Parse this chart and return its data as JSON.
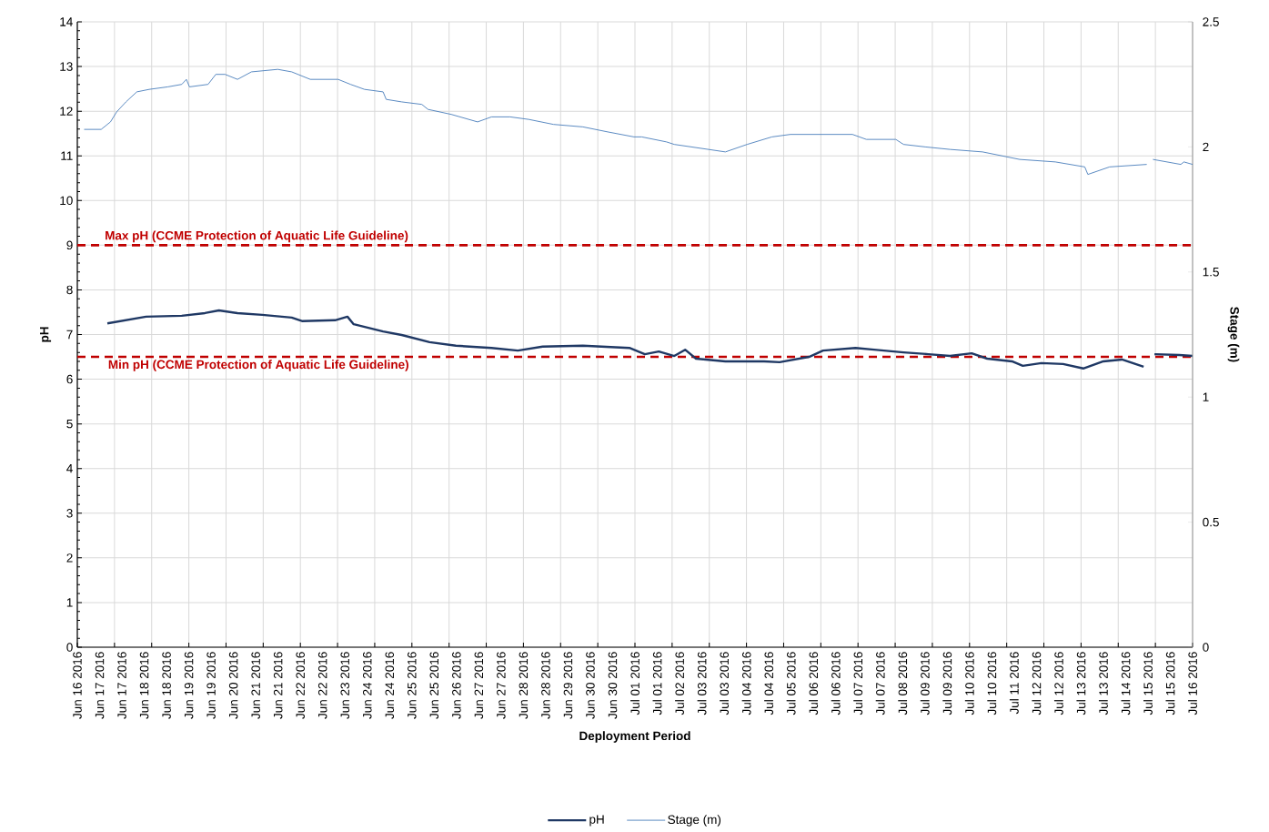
{
  "chart_data": {
    "type": "line",
    "xlabel": "Deployment Period",
    "ylabel": "pH",
    "y2label": "Stage (m)",
    "xlim": [
      "2016-06-16T09:36",
      "2016-07-16T09:36"
    ],
    "xticks": [
      {
        "value": "2016-06-16T09:36",
        "label": null
      },
      {
        "value": "2016-06-17T09:36",
        "label": null
      },
      {
        "value": "2016-06-18T09:36",
        "label": null
      },
      {
        "value": "2016-06-19T09:36",
        "label": null
      },
      {
        "value": "2016-06-20T09:36",
        "label": null
      },
      {
        "value": "2016-06-21T09:36",
        "label": null
      },
      {
        "value": "2016-06-22T09:36",
        "label": null
      },
      {
        "value": "2016-06-23T09:36",
        "label": null
      },
      {
        "value": "2016-06-24T09:36",
        "label": null
      },
      {
        "value": "2016-06-25T09:36",
        "label": null
      },
      {
        "value": "2016-06-26T09:36",
        "label": null
      },
      {
        "value": "2016-06-27T09:36",
        "label": null
      },
      {
        "value": "2016-06-28T09:36",
        "label": null
      },
      {
        "value": "2016-06-29T09:36",
        "label": null
      },
      {
        "value": "2016-06-30T09:36",
        "label": null
      },
      {
        "value": "2016-07-01T09:36",
        "label": null
      },
      {
        "value": "2016-07-02T09:36",
        "label": null
      },
      {
        "value": "2016-07-03T09:36",
        "label": null
      },
      {
        "value": "2016-07-04T09:36",
        "label": null
      },
      {
        "value": "2016-07-05T09:36",
        "label": null
      },
      {
        "value": "2016-07-06T09:36",
        "label": null
      },
      {
        "value": "2016-07-07T09:36",
        "label": null
      },
      {
        "value": "2016-07-08T09:36",
        "label": null
      },
      {
        "value": "2016-07-09T09:36",
        "label": null
      },
      {
        "value": "2016-07-10T09:36",
        "label": null
      },
      {
        "value": "2016-07-11T09:36",
        "label": null
      },
      {
        "value": "2016-07-12T09:36",
        "label": null
      },
      {
        "value": "2016-07-13T09:36",
        "label": null
      },
      {
        "value": "2016-07-14T09:36",
        "label": null
      },
      {
        "value": "2016-07-15T09:36",
        "label": null
      },
      {
        "value": "2016-07-16T09:36",
        "label": null
      },
      {
        "value": "2016-06-16T09:36",
        "label": "Jun 16 2016"
      },
      {
        "value": "2016-06-17T00:00",
        "label": "Jun 17 2016"
      },
      {
        "value": "2016-06-17T14:24",
        "label": "Jun 17 2016"
      },
      {
        "value": "2016-06-18T04:48",
        "label": "Jun 18 2016"
      },
      {
        "value": "2016-06-18T19:12",
        "label": "Jun 18 2016"
      },
      {
        "value": "2016-06-19T09:36",
        "label": "Jun 19 2016"
      },
      {
        "value": "2016-06-19T23:59",
        "label": "Jun 19 2016"
      },
      {
        "value": "2016-06-20T14:24",
        "label": "Jun 20 2016"
      },
      {
        "value": "2016-06-21T04:48",
        "label": "Jun 21 2016"
      },
      {
        "value": "2016-06-21T19:12",
        "label": "Jun 21 2016"
      },
      {
        "value": "2016-06-22T09:36",
        "label": "Jun 22 2016"
      },
      {
        "value": "2016-06-22T23:59",
        "label": "Jun 22 2016"
      },
      {
        "value": "2016-06-23T14:24",
        "label": "Jun 23 2016"
      },
      {
        "value": "2016-06-24T04:48",
        "label": "Jun 24 2016"
      },
      {
        "value": "2016-06-24T19:12",
        "label": "Jun 24 2016"
      },
      {
        "value": "2016-06-25T09:36",
        "label": "Jun 25 2016"
      },
      {
        "value": "2016-06-25T23:59",
        "label": "Jun 25 2016"
      },
      {
        "value": "2016-06-26T14:24",
        "label": "Jun 26 2016"
      },
      {
        "value": "2016-06-27T04:48",
        "label": "Jun 27 2016"
      },
      {
        "value": "2016-06-27T19:12",
        "label": "Jun 27 2016"
      },
      {
        "value": "2016-06-28T09:36",
        "label": "Jun 28 2016"
      },
      {
        "value": "2016-06-28T23:59",
        "label": "Jun 28 2016"
      },
      {
        "value": "2016-06-29T14:24",
        "label": "Jun 29 2016"
      },
      {
        "value": "2016-06-30T04:48",
        "label": "Jun 30 2016"
      },
      {
        "value": "2016-06-30T19:12",
        "label": "Jun 30 2016"
      },
      {
        "value": "2016-07-01T09:36",
        "label": "Jul 01 2016"
      },
      {
        "value": "2016-07-01T23:59",
        "label": "Jul 01 2016"
      },
      {
        "value": "2016-07-02T14:24",
        "label": "Jul 02 2016"
      },
      {
        "value": "2016-07-03T04:48",
        "label": "Jul 03 2016"
      },
      {
        "value": "2016-07-03T19:12",
        "label": "Jul 03 2016"
      },
      {
        "value": "2016-07-04T09:36",
        "label": "Jul 04 2016"
      },
      {
        "value": "2016-07-04T23:59",
        "label": "Jul 04 2016"
      },
      {
        "value": "2016-07-05T14:24",
        "label": "Jul 05 2016"
      },
      {
        "value": "2016-07-06T04:48",
        "label": "Jul 06 2016"
      },
      {
        "value": "2016-07-06T19:12",
        "label": "Jul 06 2016"
      },
      {
        "value": "2016-07-07T09:36",
        "label": "Jul 07 2016"
      },
      {
        "value": "2016-07-07T23:59",
        "label": "Jul 07 2016"
      },
      {
        "value": "2016-07-08T14:24",
        "label": "Jul 08 2016"
      },
      {
        "value": "2016-07-09T04:48",
        "label": "Jul 09 2016"
      },
      {
        "value": "2016-07-09T19:12",
        "label": "Jul 09 2016"
      },
      {
        "value": "2016-07-10T09:36",
        "label": "Jul 10 2016"
      },
      {
        "value": "2016-07-10T23:59",
        "label": "Jul 10 2016"
      },
      {
        "value": "2016-07-11T14:24",
        "label": "Jul 11 2016"
      },
      {
        "value": "2016-07-12T04:48",
        "label": "Jul 12 2016"
      },
      {
        "value": "2016-07-12T19:12",
        "label": "Jul 12 2016"
      },
      {
        "value": "2016-07-13T09:36",
        "label": "Jul 13 2016"
      },
      {
        "value": "2016-07-13T23:59",
        "label": "Jul 13 2016"
      },
      {
        "value": "2016-07-14T14:24",
        "label": "Jul 14 2016"
      },
      {
        "value": "2016-07-15T04:48",
        "label": "Jul 15 2016"
      },
      {
        "value": "2016-07-15T19:12",
        "label": "Jul 15 2016"
      },
      {
        "value": "2016-07-16T09:36",
        "label": "Jul 16 2016"
      }
    ],
    "ylim": [
      0,
      14
    ],
    "yticks": [
      0,
      1,
      2,
      3,
      4,
      5,
      6,
      7,
      8,
      9,
      10,
      11,
      12,
      13,
      14
    ],
    "y2lim": [
      0,
      2.5
    ],
    "y2ticks": [
      0,
      0.5,
      1,
      1.5,
      2,
      2.5
    ],
    "grid": true,
    "legend": "bottom",
    "ref_lines": [
      {
        "axis": "y",
        "value": 9,
        "label": "Max pH (CCME  Protection of Aquatic  Life Guideline)",
        "color": "#c00000",
        "line_style": "dashed"
      },
      {
        "axis": "y",
        "value": 6.5,
        "label": "Min pH (CCME  Protection of Aquatic  Life Guideline)",
        "color": "#c00000",
        "line_style": "dashed"
      }
    ],
    "series": [
      {
        "name": "pH",
        "color": "#1f3864",
        "axis": "y",
        "x": [
          "2016-06-17T05:00",
          "2016-06-18T06:00",
          "2016-06-19T05:00",
          "2016-06-19T20:00",
          "2016-06-20T05:00",
          "2016-06-20T17:00",
          "2016-06-21T09:00",
          "2016-06-22T04:00",
          "2016-06-22T11:00",
          "2016-06-23T08:00",
          "2016-06-23T16:00",
          "2016-06-23T20:00",
          "2016-06-24T15:00",
          "2016-06-25T03:00",
          "2016-06-25T21:00",
          "2016-06-26T14:00",
          "2016-06-27T13:00",
          "2016-06-28T06:00",
          "2016-06-28T22:00",
          "2016-06-30T00:00",
          "2016-07-01T06:00",
          "2016-07-01T16:00",
          "2016-07-02T01:00",
          "2016-07-02T11:00",
          "2016-07-02T18:00",
          "2016-07-03T01:00",
          "2016-07-03T20:00",
          "2016-07-04T21:00",
          "2016-07-05T07:00",
          "2016-07-06T02:00",
          "2016-07-06T11:00",
          "2016-07-07T08:00",
          "2016-07-07T20:00",
          "2016-07-08T15:00",
          "2016-07-09T07:00",
          "2016-07-09T21:00",
          "2016-07-10T11:00",
          "2016-07-10T21:00",
          "2016-07-11T13:00",
          "2016-07-11T20:00",
          "2016-07-12T08:00",
          "2016-07-12T22:00",
          "2016-07-13T11:00",
          "2016-07-14T00:00",
          "2016-07-14T12:00",
          "2016-07-15T02:00",
          "2016-07-15T06:00",
          "2016-07-15T09:00",
          "2016-07-16T01:00",
          "2016-07-16T09:36"
        ],
        "values": [
          7.25,
          7.4,
          7.42,
          7.48,
          7.54,
          7.48,
          7.44,
          7.38,
          7.3,
          7.32,
          7.4,
          7.23,
          7.07,
          6.99,
          6.83,
          6.75,
          6.7,
          6.64,
          6.73,
          6.75,
          6.7,
          6.56,
          6.62,
          6.52,
          6.66,
          6.46,
          6.4,
          6.4,
          6.38,
          6.5,
          6.64,
          6.7,
          6.66,
          6.6,
          6.56,
          6.52,
          6.58,
          6.46,
          6.4,
          6.3,
          6.36,
          6.34,
          6.24,
          6.4,
          6.44,
          6.28,
          null,
          6.56,
          6.54,
          6.52
        ]
      },
      {
        "name": "Stage (m)",
        "color": "#4a7ebb",
        "axis": "y2",
        "x": [
          "2016-06-16T14:00",
          "2016-06-17T01:00",
          "2016-06-17T07:00",
          "2016-06-17T11:00",
          "2016-06-17T17:00",
          "2016-06-18T00:00",
          "2016-06-18T08:00",
          "2016-06-18T20:00",
          "2016-06-19T05:00",
          "2016-06-19T08:00",
          "2016-06-19T10:00",
          "2016-06-19T22:00",
          "2016-06-20T03:00",
          "2016-06-20T09:00",
          "2016-06-20T17:00",
          "2016-06-21T02:00",
          "2016-06-21T19:00",
          "2016-06-22T04:00",
          "2016-06-22T16:00",
          "2016-06-23T10:00",
          "2016-06-23T18:00",
          "2016-06-24T03:00",
          "2016-06-24T15:00",
          "2016-06-24T17:00",
          "2016-06-25T03:00",
          "2016-06-25T16:00",
          "2016-06-25T20:00",
          "2016-06-26T11:00",
          "2016-06-27T04:00",
          "2016-06-27T13:00",
          "2016-06-28T01:00",
          "2016-06-28T13:00",
          "2016-06-29T05:00",
          "2016-06-30T00:00",
          "2016-06-30T16:00",
          "2016-07-01T09:00",
          "2016-07-01T14:00",
          "2016-07-02T06:00",
          "2016-07-02T11:00",
          "2016-07-02T22:00",
          "2016-07-03T20:00",
          "2016-07-04T10:00",
          "2016-07-05T02:00",
          "2016-07-05T14:00",
          "2016-07-06T04:00",
          "2016-07-06T13:00",
          "2016-07-07T06:00",
          "2016-07-07T15:00",
          "2016-07-08T10:00",
          "2016-07-08T15:00",
          "2016-07-09T05:00",
          "2016-07-09T21:00",
          "2016-07-10T18:00",
          "2016-07-11T18:00",
          "2016-07-12T17:00",
          "2016-07-13T12:00",
          "2016-07-13T14:00",
          "2016-07-14T04:00",
          "2016-07-15T04:00",
          "2016-07-15T06:00",
          "2016-07-15T08:00",
          "2016-07-16T02:00",
          "2016-07-16T04:00",
          "2016-07-16T09:36"
        ],
        "values": [
          2.07,
          2.07,
          2.1,
          2.14,
          2.18,
          2.22,
          2.23,
          2.24,
          2.25,
          2.27,
          2.24,
          2.25,
          2.29,
          2.29,
          2.27,
          2.3,
          2.31,
          2.3,
          2.27,
          2.27,
          2.25,
          2.23,
          2.22,
          2.19,
          2.18,
          2.17,
          2.15,
          2.13,
          2.1,
          2.12,
          2.12,
          2.11,
          2.09,
          2.08,
          2.06,
          2.04,
          2.04,
          2.02,
          2.01,
          2.0,
          1.98,
          2.01,
          2.04,
          2.05,
          2.05,
          2.05,
          2.05,
          2.03,
          2.03,
          2.01,
          2.0,
          1.99,
          1.98,
          1.95,
          1.94,
          1.92,
          1.89,
          1.92,
          1.93,
          null,
          1.95,
          1.93,
          1.94,
          1.93
        ]
      }
    ]
  }
}
